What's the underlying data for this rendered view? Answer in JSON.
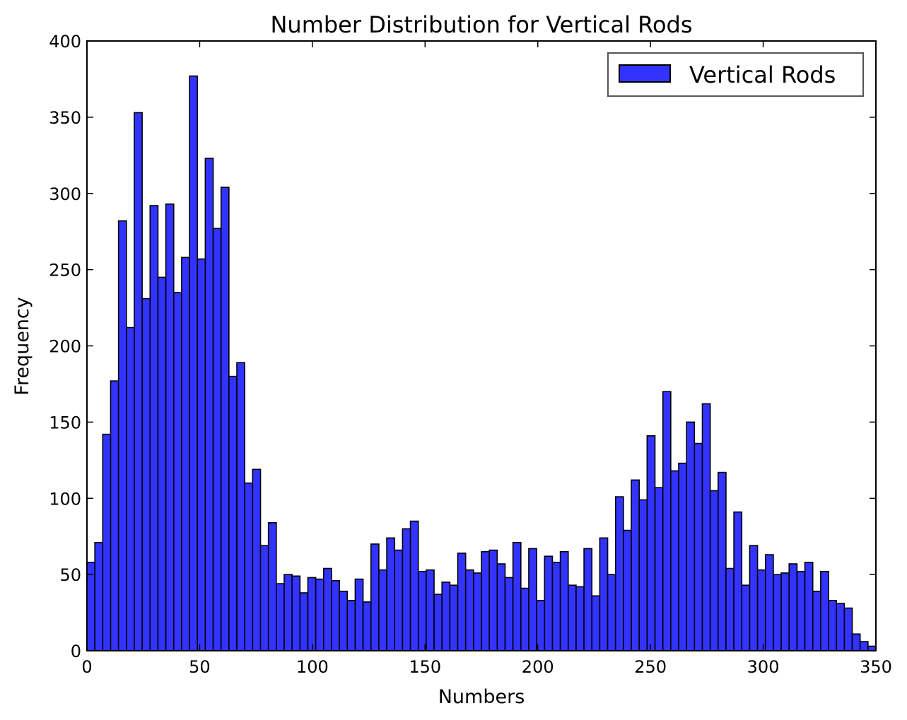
{
  "chart_data": {
    "type": "bar",
    "title": "Number Distribution for Vertical Rods",
    "xlabel": "Numbers",
    "ylabel": "Frequency",
    "xlim": [
      0,
      350
    ],
    "ylim": [
      0,
      400
    ],
    "xticks": [
      0,
      50,
      100,
      150,
      200,
      250,
      300,
      350
    ],
    "yticks": [
      0,
      50,
      100,
      150,
      200,
      250,
      300,
      350,
      400
    ],
    "bin_start": 0,
    "bin_width": 3.5,
    "grid": false,
    "legend": {
      "position": "top-right"
    },
    "series": [
      {
        "name": "Vertical Rods",
        "color": "#3333ff",
        "edge_color": "#000000",
        "values": [
          58,
          71,
          142,
          177,
          282,
          212,
          353,
          231,
          292,
          245,
          293,
          235,
          258,
          377,
          257,
          323,
          277,
          304,
          180,
          189,
          110,
          119,
          69,
          84,
          44,
          50,
          49,
          38,
          48,
          47,
          54,
          46,
          39,
          33,
          47,
          32,
          70,
          53,
          74,
          66,
          80,
          85,
          52,
          53,
          37,
          45,
          43,
          64,
          53,
          51,
          65,
          66,
          57,
          48,
          71,
          41,
          67,
          33,
          62,
          58,
          65,
          43,
          42,
          67,
          36,
          74,
          50,
          101,
          79,
          112,
          99,
          141,
          107,
          170,
          118,
          123,
          150,
          136,
          162,
          105,
          117,
          54,
          91,
          43,
          69,
          53,
          63,
          50,
          51,
          57,
          52,
          58,
          39,
          52,
          33,
          31,
          28,
          11,
          6,
          3
        ]
      }
    ]
  }
}
